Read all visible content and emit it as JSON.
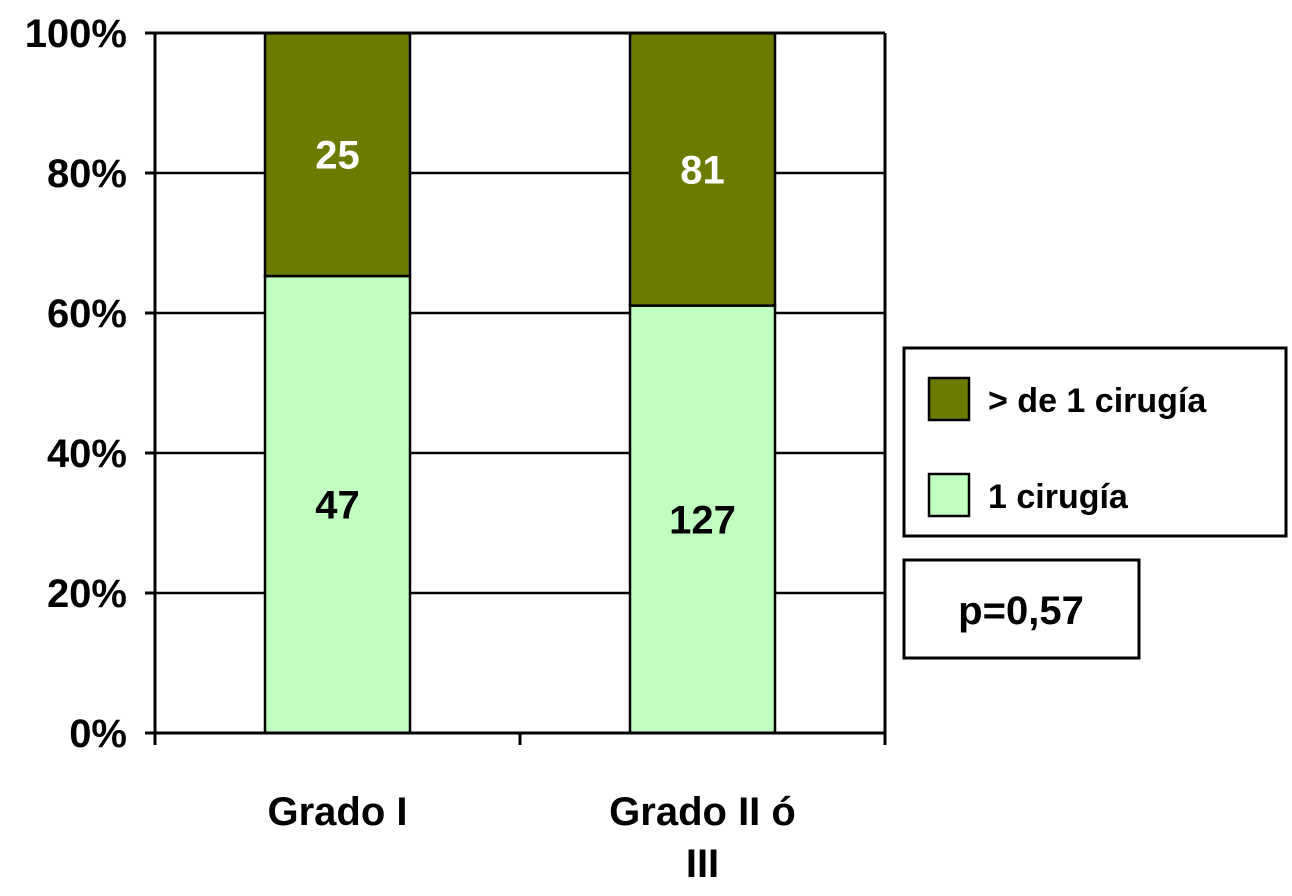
{
  "chart_data": {
    "type": "bar",
    "stacked": "percent",
    "categories": [
      [
        "Grado I"
      ],
      [
        "Grado II ó",
        "III"
      ]
    ],
    "series": [
      {
        "name": "1 cirugía",
        "values": [
          47,
          127
        ],
        "color": "#c0ffc0",
        "label_color": "#000000"
      },
      {
        "name": "> de 1 cirugía",
        "values": [
          25,
          81
        ],
        "color": "#6b7b00",
        "label_color": "#ffffff"
      }
    ],
    "yticks": [
      "0%",
      "20%",
      "40%",
      "60%",
      "80%",
      "100%"
    ],
    "ylim": [
      0,
      100
    ],
    "grid": true,
    "legend": {
      "placement": "right",
      "order": [
        "> de 1 cirugía",
        "1 cirugía"
      ]
    },
    "annotation": "p=0,57"
  }
}
